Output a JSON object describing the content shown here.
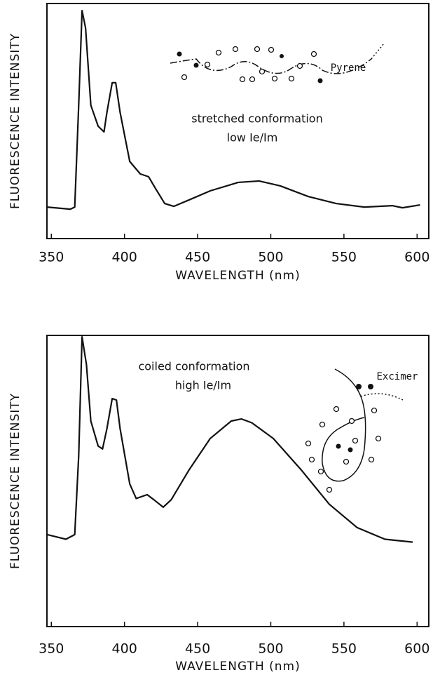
{
  "chart_data": [
    {
      "type": "line",
      "x_label": "WAVELENGTH (nm)",
      "y_label": "FLUORESCENCE INTENSITY",
      "annotations": [
        "stretched conformation",
        "low Ie/Im",
        "Pyrene"
      ],
      "x": [
        347,
        363,
        366,
        368.7,
        371,
        373.4,
        377,
        382,
        386,
        388,
        391.6,
        394,
        397,
        403.6,
        410.8,
        416.5,
        421,
        427.5,
        433.7,
        444,
        458.6,
        477.8,
        492,
        506.5,
        525.6,
        544.7,
        564,
        583,
        590,
        602
      ],
      "values": [
        13.4,
        12.5,
        13.4,
        56.7,
        97,
        89.6,
        56.7,
        47.8,
        45.4,
        53.7,
        66.3,
        66.3,
        53.7,
        32.8,
        27.5,
        26.3,
        21.5,
        14.9,
        13.7,
        16.4,
        20.3,
        23.9,
        24.5,
        22.4,
        17.9,
        14.9,
        13.4,
        14,
        13.1,
        14.3
      ],
      "color": "#111111",
      "xlim": [
        347,
        608
      ],
      "ylim": [
        0,
        100
      ],
      "xticks": [
        350,
        400,
        450,
        500,
        550,
        600
      ]
    },
    {
      "type": "line",
      "x_label": "WAVELENGTH (nm)",
      "y_label": "FLUORESCENCE INTENSITY",
      "annotations": [
        "coiled conformation",
        "high Ie/Im",
        "Excimer"
      ],
      "x": [
        347,
        360,
        366,
        368.7,
        371,
        374,
        377,
        382,
        385,
        388,
        391.6,
        394.5,
        397,
        403.6,
        408,
        415.5,
        420,
        426.5,
        432,
        444,
        458.6,
        473,
        480,
        487,
        501.7,
        521,
        540,
        559,
        578,
        597
      ],
      "values": [
        31.6,
        30,
        31.6,
        58.6,
        99.5,
        90,
        70.6,
        62,
        61,
        68,
        78.3,
        77.8,
        68,
        49,
        44,
        45.3,
        43.6,
        41,
        43.6,
        53.7,
        64.6,
        70.6,
        71.3,
        70,
        64.6,
        53.7,
        42,
        34,
        30,
        29
      ],
      "color": "#111111",
      "xlim": [
        347,
        608
      ],
      "ylim": [
        0,
        100
      ],
      "xticks": [
        350,
        400,
        450,
        500,
        550,
        600
      ]
    }
  ]
}
